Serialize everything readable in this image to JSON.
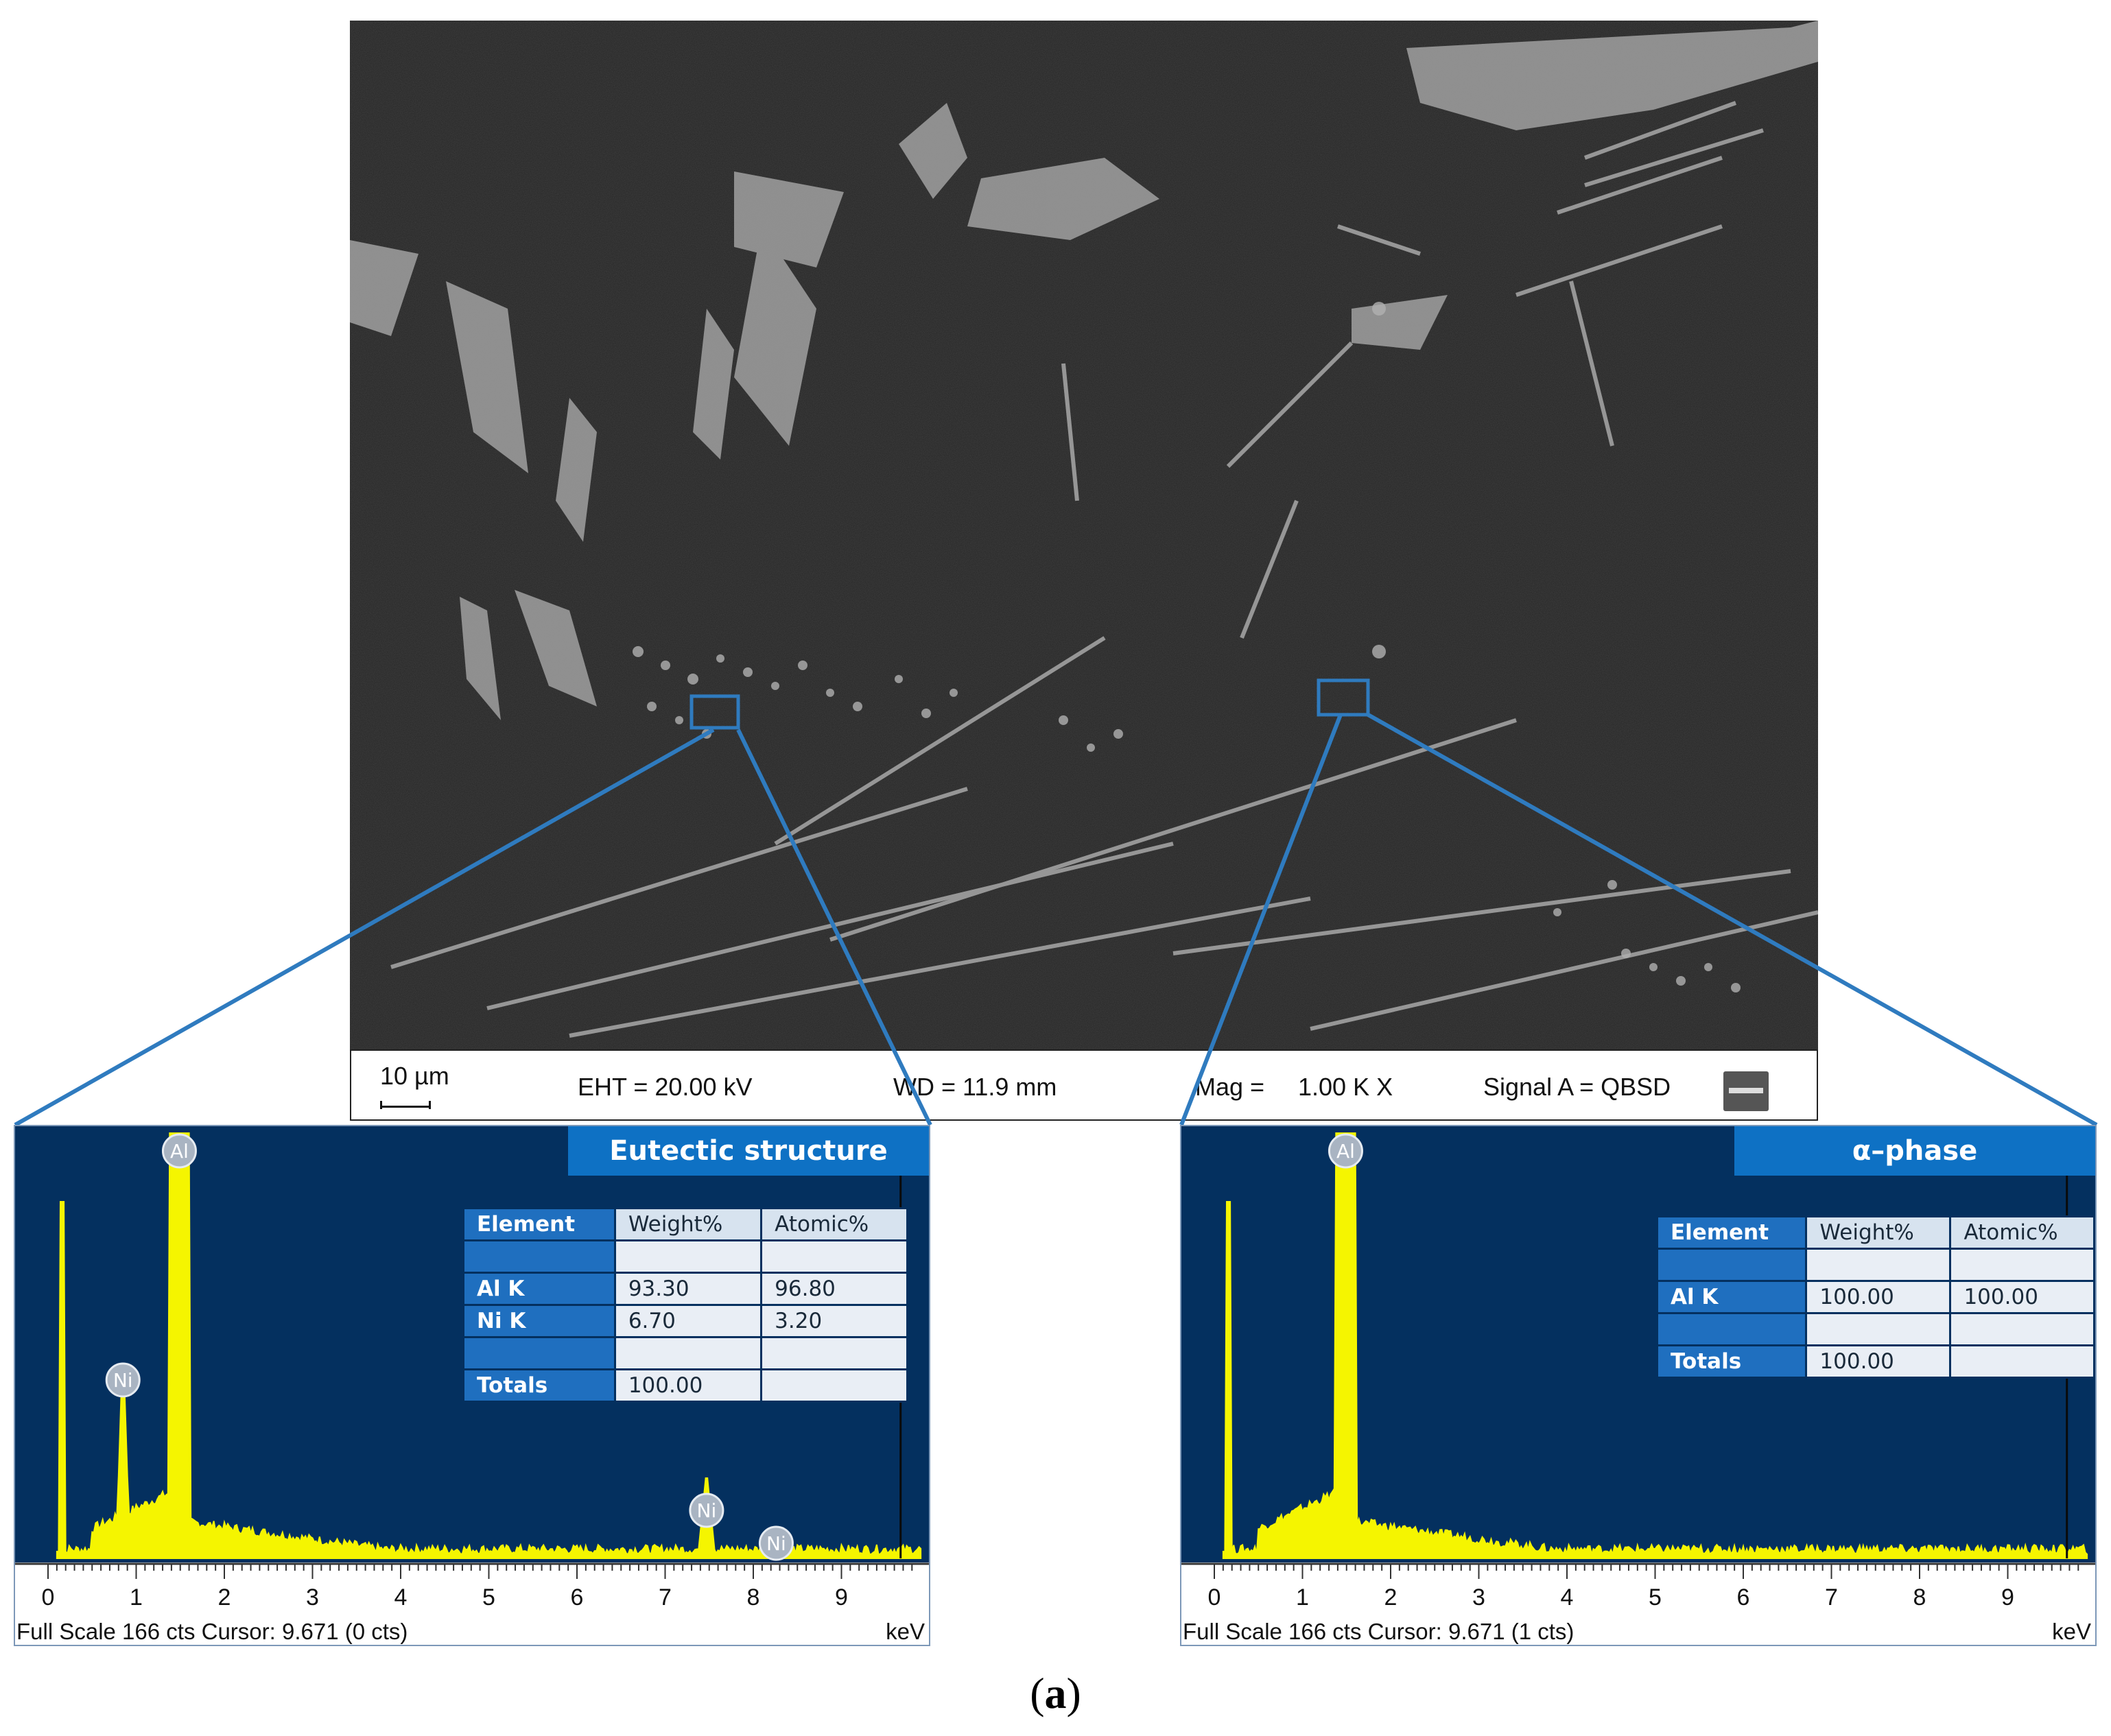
{
  "sem_image": {
    "scale_bar_label": "10 µm",
    "eht": "EHT = 20.00 kV",
    "wd": "WD = 11.9 mm",
    "mag_label": "Mag =",
    "mag_value": "1.00 K X",
    "signal": "Signal A = QBSD",
    "logo": "zeiss-logo"
  },
  "spectra": [
    {
      "title": "Eutectic structure",
      "table": {
        "headers": [
          "Element",
          "Weight%",
          "Atomic%"
        ],
        "rows": [
          [
            "",
            "",
            ""
          ],
          [
            "Al K",
            "93.30",
            "96.80"
          ],
          [
            "Ni K",
            "6.70",
            "3.20"
          ],
          [
            "",
            "",
            ""
          ],
          [
            "Totals",
            "100.00",
            ""
          ]
        ]
      },
      "peaks": [
        {
          "label": "Al",
          "kev": 1.49
        },
        {
          "label": "Ni",
          "kev": 0.85
        },
        {
          "label": "Ni",
          "kev": 7.47
        },
        {
          "label": "Ni",
          "kev": 8.26
        }
      ],
      "footer": "Full Scale 166 cts Cursor: 9.671  (0 cts)",
      "unit": "keV"
    },
    {
      "title": "α–phase",
      "table": {
        "headers": [
          "Element",
          "Weight%",
          "Atomic%"
        ],
        "rows": [
          [
            "",
            "",
            ""
          ],
          [
            "Al K",
            "100.00",
            "100.00"
          ],
          [
            "",
            "",
            ""
          ],
          [
            "Totals",
            "100.00",
            ""
          ]
        ]
      },
      "peaks": [
        {
          "label": "Al",
          "kev": 1.49
        }
      ],
      "footer": "Full Scale 166 cts Cursor: 9.671  (1 cts)",
      "unit": "keV"
    }
  ],
  "axis": {
    "ticks": [
      "0",
      "1",
      "2",
      "3",
      "4",
      "5",
      "6",
      "7",
      "8",
      "9"
    ],
    "min": 0,
    "max": 9.9
  },
  "caption_label": "a",
  "colors": {
    "plot_bg": "#04305f",
    "spectrum": "#f5f500",
    "title_box": "#0e71c4",
    "connector": "#2f7bbf"
  }
}
